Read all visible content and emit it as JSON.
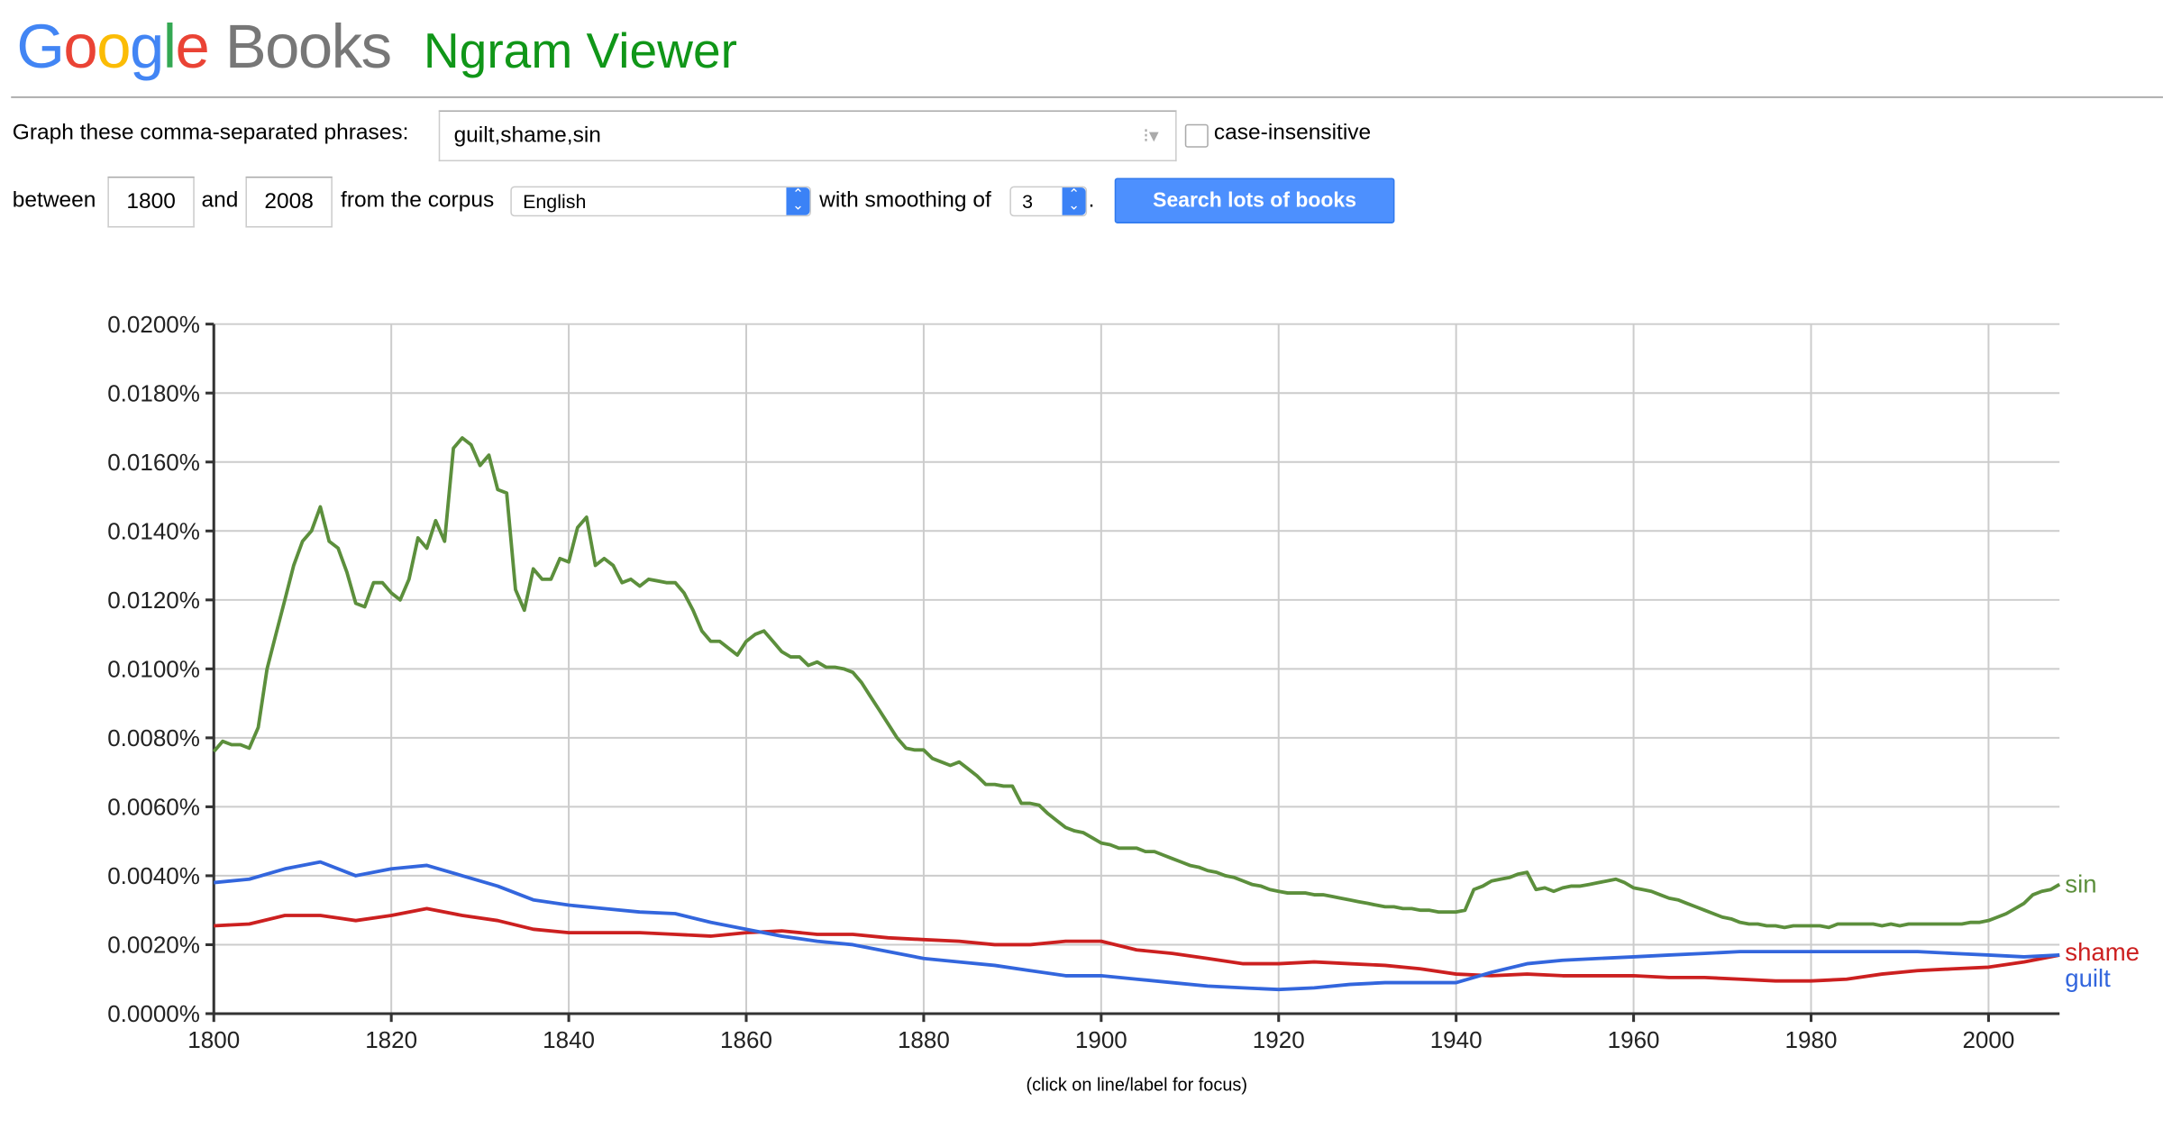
{
  "header": {
    "logo": "Google Books",
    "title": "Ngram Viewer"
  },
  "form": {
    "phrases_label": "Graph these comma-separated phrases:",
    "phrases_value": "guilt,shame,sin",
    "case_insensitive_label": "case-insensitive",
    "case_insensitive_checked": false,
    "between_label": "between",
    "start_year": "1800",
    "and_label": "and",
    "end_year": "2008",
    "corpus_label": "from the corpus",
    "corpus_value": "English",
    "smoothing_label": "with smoothing of",
    "smoothing_value": "3",
    "period": ".",
    "search_button": "Search lots of books"
  },
  "caption": "(click on line/label for focus)",
  "chart_data": {
    "type": "line",
    "title": "",
    "xlabel": "",
    "ylabel": "",
    "xlim": [
      1800,
      2008
    ],
    "ylim": [
      0,
      0.02
    ],
    "grid": true,
    "x_ticks": [
      "1800",
      "1820",
      "1840",
      "1860",
      "1880",
      "1900",
      "1920",
      "1940",
      "1960",
      "1980",
      "2000"
    ],
    "y_ticks": [
      "0.0000%",
      "0.0020%",
      "0.0040%",
      "0.0060%",
      "0.0080%",
      "0.0100%",
      "0.0120%",
      "0.0140%",
      "0.0160%",
      "0.0180%",
      "0.0200%"
    ],
    "legend_placement": "right-end-labels",
    "series": [
      {
        "name": "sin",
        "color": "#5c8f3c",
        "x_start": 1800,
        "x_step": 1,
        "values": [
          0.0076,
          0.0079,
          0.0078,
          0.0078,
          0.0077,
          0.0083,
          0.01,
          0.011,
          0.012,
          0.013,
          0.0137,
          0.014,
          0.0147,
          0.0137,
          0.0135,
          0.0128,
          0.0119,
          0.0118,
          0.0125,
          0.0125,
          0.0122,
          0.012,
          0.0126,
          0.0138,
          0.0135,
          0.0143,
          0.0137,
          0.0164,
          0.0167,
          0.0165,
          0.0159,
          0.0162,
          0.0152,
          0.0151,
          0.0123,
          0.0117,
          0.0129,
          0.0126,
          0.0126,
          0.0132,
          0.0131,
          0.0141,
          0.0144,
          0.013,
          0.0132,
          0.013,
          0.0125,
          0.0126,
          0.0124,
          0.0126,
          0.01255,
          0.0125,
          0.0125,
          0.0122,
          0.0117,
          0.0111,
          0.0108,
          0.0108,
          0.0106,
          0.0104,
          0.0108,
          0.011,
          0.0111,
          0.0108,
          0.0105,
          0.01035,
          0.01035,
          0.0101,
          0.0102,
          0.01005,
          0.01005,
          0.01,
          0.0099,
          0.0096,
          0.0092,
          0.0088,
          0.0084,
          0.008,
          0.0077,
          0.00765,
          0.00765,
          0.0074,
          0.0073,
          0.0072,
          0.0073,
          0.0071,
          0.0069,
          0.00665,
          0.00665,
          0.0066,
          0.0066,
          0.0061,
          0.0061,
          0.00605,
          0.0058,
          0.0056,
          0.0054,
          0.0053,
          0.00525,
          0.0051,
          0.00495,
          0.0049,
          0.0048,
          0.0048,
          0.0048,
          0.0047,
          0.0047,
          0.0046,
          0.0045,
          0.0044,
          0.0043,
          0.00425,
          0.00415,
          0.0041,
          0.004,
          0.00395,
          0.00385,
          0.00375,
          0.0037,
          0.0036,
          0.00355,
          0.0035,
          0.0035,
          0.0035,
          0.00345,
          0.00345,
          0.0034,
          0.00335,
          0.0033,
          0.00325,
          0.0032,
          0.00315,
          0.0031,
          0.0031,
          0.00305,
          0.00305,
          0.003,
          0.003,
          0.00295,
          0.00295,
          0.00295,
          0.003,
          0.0036,
          0.0037,
          0.00385,
          0.0039,
          0.00395,
          0.00405,
          0.0041,
          0.0036,
          0.00365,
          0.00355,
          0.00365,
          0.0037,
          0.0037,
          0.00375,
          0.0038,
          0.00385,
          0.0039,
          0.0038,
          0.00365,
          0.0036,
          0.00355,
          0.00345,
          0.00335,
          0.0033,
          0.0032,
          0.0031,
          0.003,
          0.0029,
          0.0028,
          0.00275,
          0.00265,
          0.0026,
          0.0026,
          0.00255,
          0.00255,
          0.0025,
          0.00255,
          0.00255,
          0.00255,
          0.00255,
          0.0025,
          0.0026,
          0.0026,
          0.0026,
          0.0026,
          0.0026,
          0.00255,
          0.0026,
          0.00255,
          0.0026,
          0.0026,
          0.0026,
          0.0026,
          0.0026,
          0.0026,
          0.0026,
          0.00265,
          0.00265,
          0.0027,
          0.0028,
          0.0029,
          0.00305,
          0.0032,
          0.00345,
          0.00355,
          0.0036,
          0.00375
        ]
      },
      {
        "name": "shame",
        "color": "#cc2020",
        "x_start": 1800,
        "x_step": 4,
        "values": [
          0.00255,
          0.0026,
          0.00285,
          0.00285,
          0.0027,
          0.00285,
          0.00305,
          0.00285,
          0.0027,
          0.00245,
          0.00235,
          0.00235,
          0.00235,
          0.0023,
          0.00225,
          0.00235,
          0.0024,
          0.0023,
          0.0023,
          0.0022,
          0.00215,
          0.0021,
          0.002,
          0.002,
          0.0021,
          0.0021,
          0.00185,
          0.00175,
          0.0016,
          0.00145,
          0.00145,
          0.0015,
          0.00145,
          0.0014,
          0.0013,
          0.00115,
          0.0011,
          0.00115,
          0.0011,
          0.0011,
          0.0011,
          0.00105,
          0.00105,
          0.001,
          0.00095,
          0.00095,
          0.001,
          0.00115,
          0.00125,
          0.0013,
          0.00135,
          0.0015,
          0.0017
        ]
      },
      {
        "name": "guilt",
        "color": "#3366dd",
        "x_start": 1800,
        "x_step": 4,
        "values": [
          0.0038,
          0.0039,
          0.0042,
          0.0044,
          0.004,
          0.0042,
          0.0043,
          0.004,
          0.0037,
          0.0033,
          0.00315,
          0.00305,
          0.00295,
          0.0029,
          0.00265,
          0.00245,
          0.00225,
          0.0021,
          0.002,
          0.0018,
          0.0016,
          0.0015,
          0.0014,
          0.00125,
          0.0011,
          0.0011,
          0.001,
          0.0009,
          0.0008,
          0.00075,
          0.0007,
          0.00075,
          0.00085,
          0.0009,
          0.0009,
          0.0009,
          0.0012,
          0.00145,
          0.00155,
          0.0016,
          0.00165,
          0.0017,
          0.00175,
          0.0018,
          0.0018,
          0.0018,
          0.0018,
          0.0018,
          0.0018,
          0.00175,
          0.0017,
          0.00165,
          0.0017
        ]
      }
    ]
  }
}
